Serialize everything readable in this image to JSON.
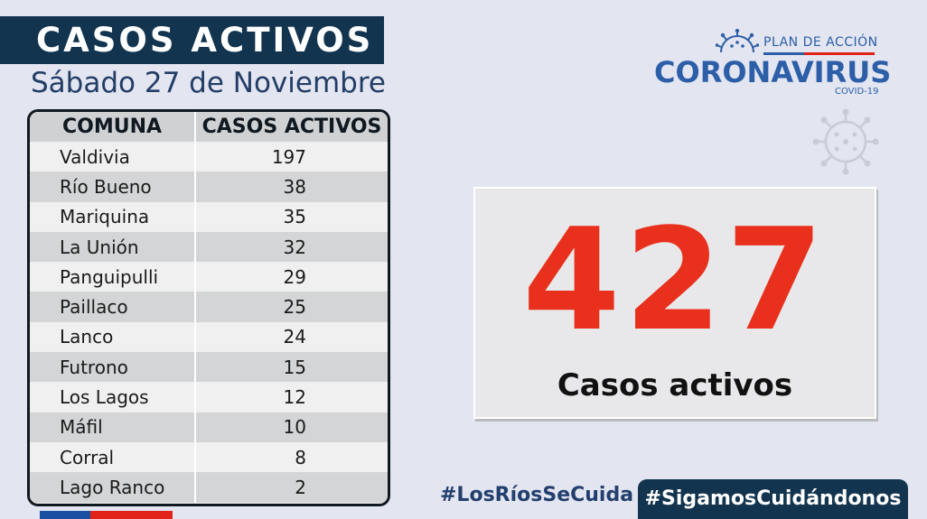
{
  "header": {
    "title": "CASOS ACTIVOS",
    "date": "Sábado 27 de Noviembre"
  },
  "table": {
    "headers": [
      "COMUNA",
      "CASOS ACTIVOS"
    ],
    "rows": [
      {
        "comuna": "Valdivia",
        "casos": "197"
      },
      {
        "comuna": "Río Bueno",
        "casos": "38"
      },
      {
        "comuna": "Mariquina",
        "casos": "35"
      },
      {
        "comuna": "La Unión",
        "casos": "32"
      },
      {
        "comuna": "Panguipulli",
        "casos": "29"
      },
      {
        "comuna": "Paillaco",
        "casos": "25"
      },
      {
        "comuna": "Lanco",
        "casos": "24"
      },
      {
        "comuna": "Futrono",
        "casos": "15"
      },
      {
        "comuna": "Los Lagos",
        "casos": "12"
      },
      {
        "comuna": "Máfil",
        "casos": "10"
      },
      {
        "comuna": "Corral",
        "casos": "8"
      },
      {
        "comuna": "Lago Ranco",
        "casos": "2"
      }
    ]
  },
  "logo": {
    "plan": "PLAN DE ACCIÓN",
    "word": "CORONAVIRUS",
    "covid": "COVID-19",
    "icon": "coronavirus-icon"
  },
  "summary": {
    "total": "427",
    "label": "Casos activos"
  },
  "hashtags": {
    "first": "#LosRíosSeCuida",
    "second": "#SigamosCuidándonos"
  },
  "colors": {
    "navy": "#12344f",
    "accent_red": "#e8301d",
    "logo_blue": "#2c5fa8",
    "background": "#e3e5f1"
  }
}
